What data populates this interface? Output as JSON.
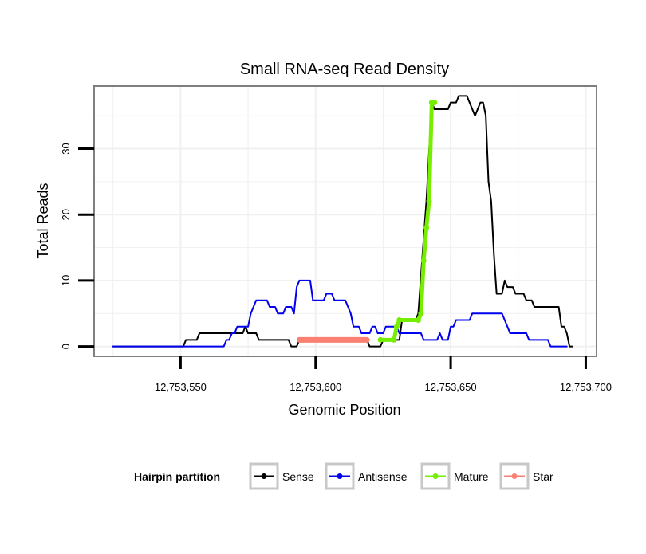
{
  "chart_data": {
    "type": "line",
    "title": "Small RNA-seq Read Density",
    "xlabel": "Genomic Position",
    "ylabel": "Total Reads",
    "xlim": [
      12753518,
      12753704
    ],
    "ylim": [
      -1.5,
      39.5
    ],
    "x_ticks": [
      12753550,
      12753600,
      12753650,
      12753700
    ],
    "x_tick_labels": [
      "12,753,550",
      "12,753,600",
      "12,753,650",
      "12,753,700"
    ],
    "y_ticks": [
      0,
      10,
      20,
      30
    ],
    "y_tick_labels": [
      "0",
      "10",
      "20",
      "30"
    ],
    "grid": true,
    "legend": {
      "title": "Hairpin partition",
      "position": "bottom",
      "entries": [
        "Sense",
        "Antisense",
        "Mature",
        "Star"
      ]
    },
    "series": [
      {
        "name": "Sense",
        "color": "#000000",
        "style": "line",
        "points": [
          [
            12753525,
            0
          ],
          [
            12753551,
            0
          ],
          [
            12753552,
            1
          ],
          [
            12753556,
            1
          ],
          [
            12753557,
            2
          ],
          [
            12753573,
            2
          ],
          [
            12753574,
            3
          ],
          [
            12753575,
            2
          ],
          [
            12753578,
            2
          ],
          [
            12753579,
            1
          ],
          [
            12753584,
            1
          ],
          [
            12753585,
            1
          ],
          [
            12753585.5,
            1
          ],
          [
            12753590,
            1
          ],
          [
            12753591,
            0
          ],
          [
            12753593,
            0
          ],
          [
            12753594,
            1
          ],
          [
            12753619,
            1
          ],
          [
            12753620,
            0
          ],
          [
            12753624,
            0
          ],
          [
            12753625,
            1
          ],
          [
            12753631,
            1
          ],
          [
            12753632,
            4
          ],
          [
            12753637,
            4
          ],
          [
            12753638,
            5
          ],
          [
            12753641,
            22
          ],
          [
            12753643,
            37
          ],
          [
            12753644,
            36
          ],
          [
            12753649,
            36
          ],
          [
            12753650,
            37
          ],
          [
            12753652,
            37
          ],
          [
            12753653,
            38
          ],
          [
            12753656,
            38
          ],
          [
            12753659,
            35
          ],
          [
            12753661,
            37
          ],
          [
            12753662,
            37
          ],
          [
            12753663,
            35
          ],
          [
            12753664,
            25
          ],
          [
            12753665,
            22
          ],
          [
            12753666,
            14
          ],
          [
            12753667,
            8
          ],
          [
            12753669,
            8
          ],
          [
            12753670,
            10
          ],
          [
            12753671,
            9
          ],
          [
            12753673,
            9
          ],
          [
            12753674,
            8
          ],
          [
            12753677,
            8
          ],
          [
            12753678,
            7
          ],
          [
            12753680,
            7
          ],
          [
            12753681,
            6
          ],
          [
            12753690,
            6
          ],
          [
            12753691,
            3
          ],
          [
            12753692,
            3
          ],
          [
            12753693,
            2
          ],
          [
            12753694,
            0
          ],
          [
            12753695,
            0
          ]
        ]
      },
      {
        "name": "Antisense",
        "color": "#0000ee",
        "style": "line",
        "points": [
          [
            12753525,
            0
          ],
          [
            12753566,
            0
          ],
          [
            12753567,
            1
          ],
          [
            12753568,
            1
          ],
          [
            12753569,
            2
          ],
          [
            12753570,
            2
          ],
          [
            12753571,
            3
          ],
          [
            12753575,
            3
          ],
          [
            12753576,
            5
          ],
          [
            12753577,
            6
          ],
          [
            12753578,
            7
          ],
          [
            12753582,
            7
          ],
          [
            12753583,
            6
          ],
          [
            12753585,
            6
          ],
          [
            12753586,
            5
          ],
          [
            12753588,
            5
          ],
          [
            12753589,
            6
          ],
          [
            12753591,
            6
          ],
          [
            12753592,
            5
          ],
          [
            12753593,
            9
          ],
          [
            12753594,
            10
          ],
          [
            12753598,
            10
          ],
          [
            12753599,
            7
          ],
          [
            12753603,
            7
          ],
          [
            12753604,
            8
          ],
          [
            12753606,
            8
          ],
          [
            12753607,
            7
          ],
          [
            12753611,
            7
          ],
          [
            12753613,
            5
          ],
          [
            12753614,
            3
          ],
          [
            12753616,
            3
          ],
          [
            12753617,
            2
          ],
          [
            12753620,
            2
          ],
          [
            12753621,
            3
          ],
          [
            12753622,
            3
          ],
          [
            12753623,
            2
          ],
          [
            12753625,
            2
          ],
          [
            12753626,
            3
          ],
          [
            12753630,
            3
          ],
          [
            12753631,
            2
          ],
          [
            12753639,
            2
          ],
          [
            12753640,
            1
          ],
          [
            12753645,
            1
          ],
          [
            12753646,
            2
          ],
          [
            12753647,
            1
          ],
          [
            12753649,
            1
          ],
          [
            12753650,
            3
          ],
          [
            12753651,
            3
          ],
          [
            12753652,
            4
          ],
          [
            12753657,
            4
          ],
          [
            12753658,
            5
          ],
          [
            12753669,
            5
          ],
          [
            12753670,
            4
          ],
          [
            12753671,
            3
          ],
          [
            12753672,
            2
          ],
          [
            12753678,
            2
          ],
          [
            12753679,
            1
          ],
          [
            12753686,
            1
          ],
          [
            12753687,
            0
          ],
          [
            12753693,
            0
          ]
        ]
      },
      {
        "name": "Mature",
        "color": "#76ee00",
        "style": "line+points",
        "points": [
          [
            12753624,
            1
          ],
          [
            12753629,
            1
          ],
          [
            12753630,
            3
          ],
          [
            12753631,
            4
          ],
          [
            12753638,
            4
          ],
          [
            12753639,
            5
          ],
          [
            12753640,
            13
          ],
          [
            12753641,
            18
          ],
          [
            12753642,
            22
          ],
          [
            12753643,
            37
          ],
          [
            12753644,
            37
          ]
        ]
      },
      {
        "name": "Star",
        "color": "#fa8072",
        "style": "line+points",
        "points": [
          [
            12753594,
            1
          ],
          [
            12753619,
            1
          ]
        ]
      }
    ]
  }
}
